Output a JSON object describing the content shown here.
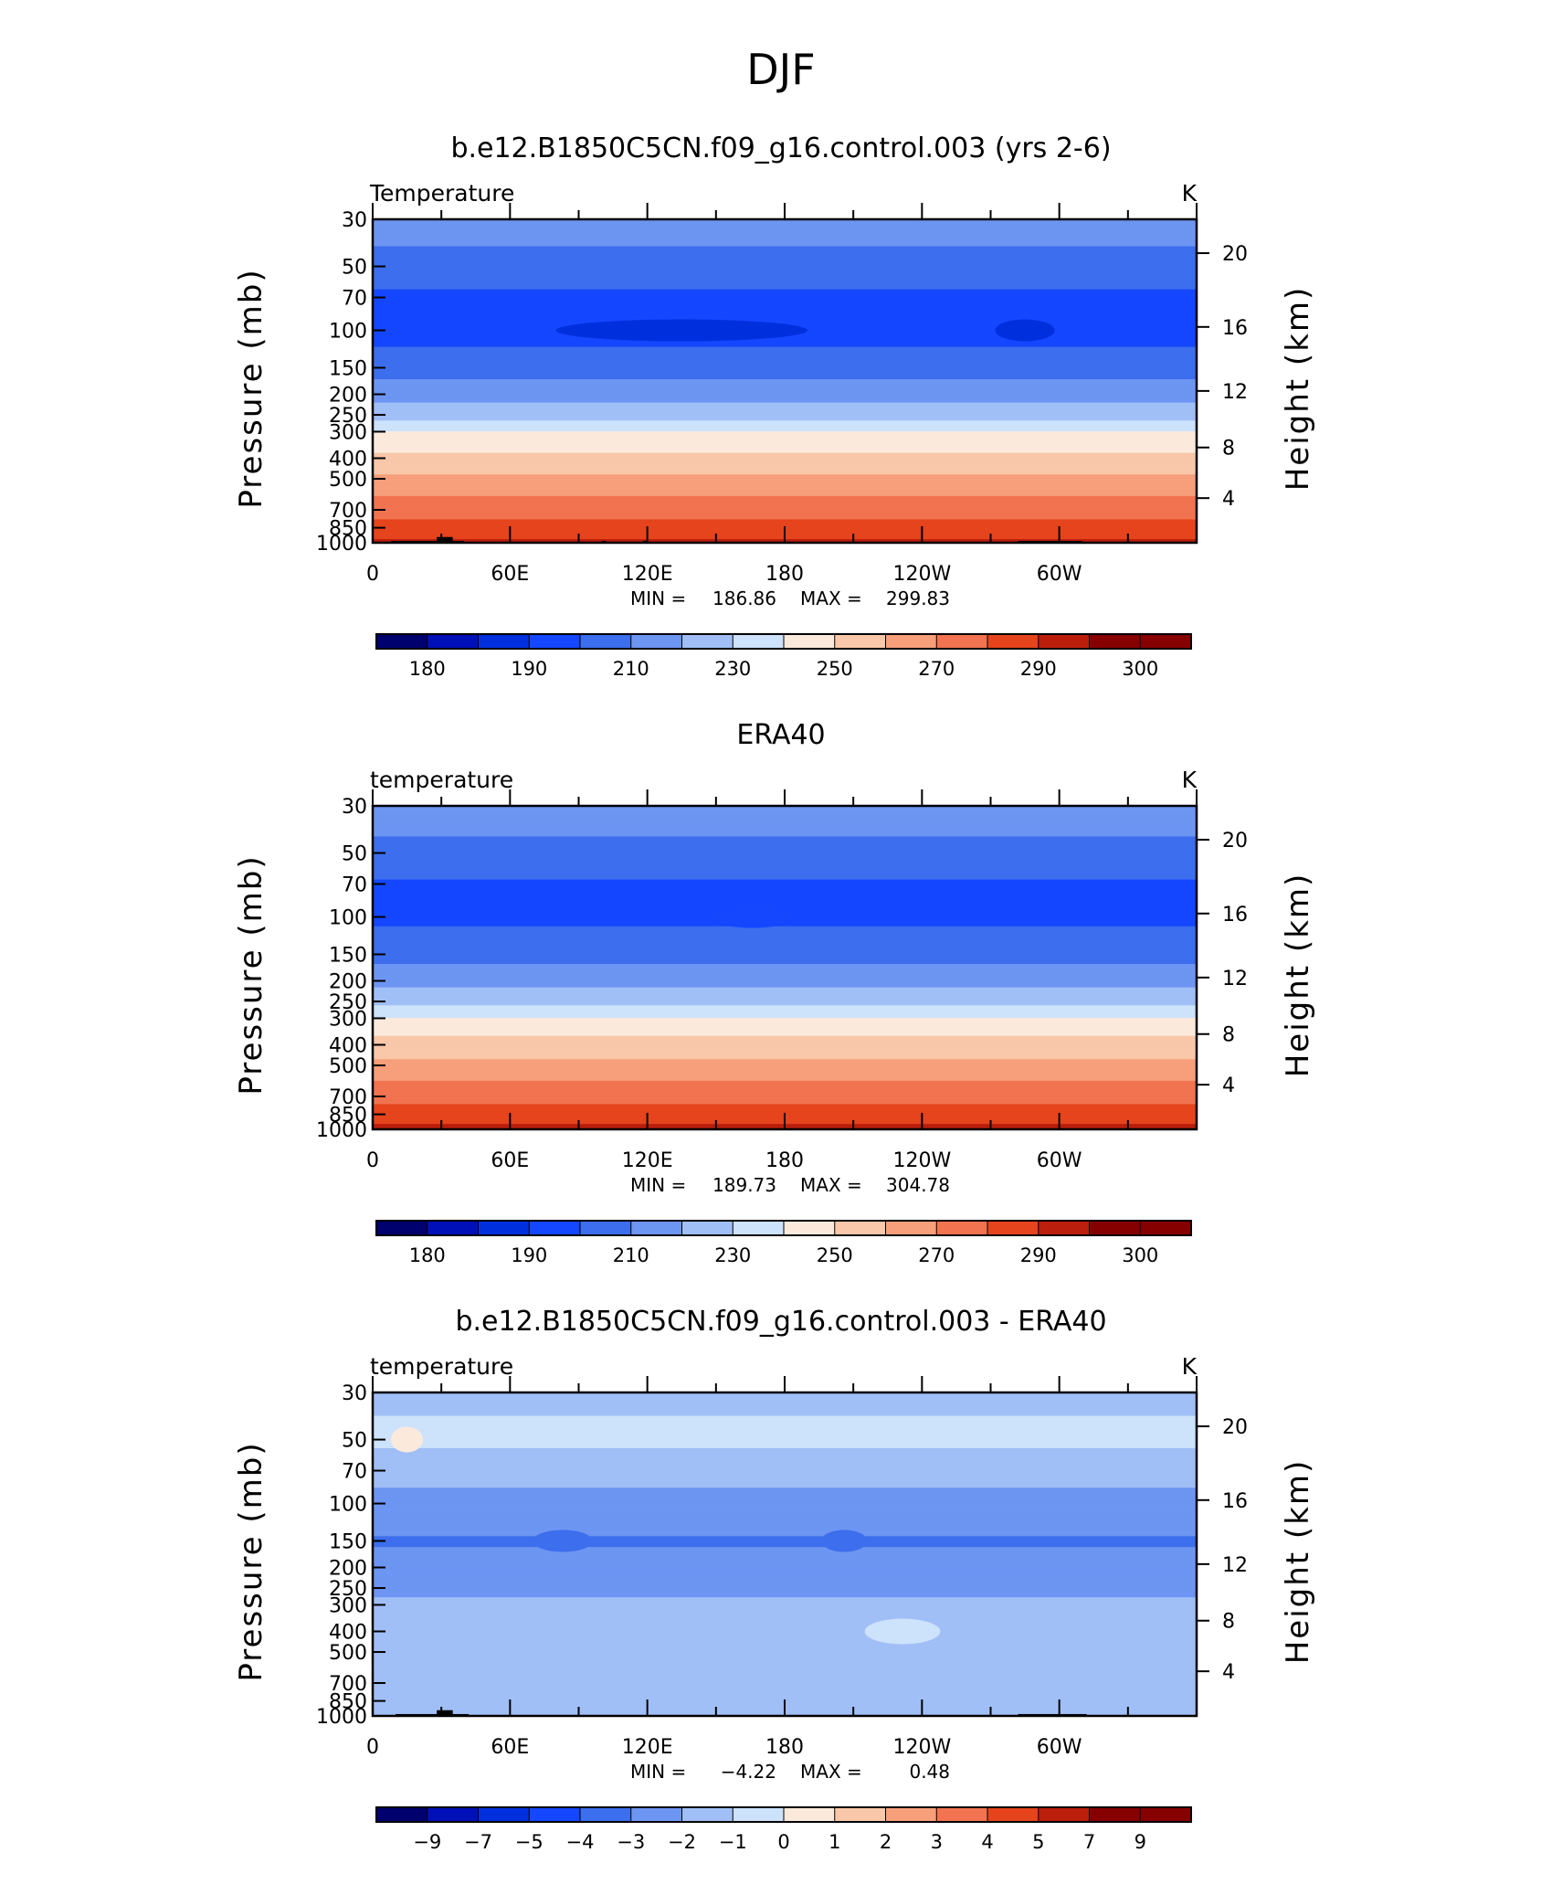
{
  "figure_title": "DJF",
  "chart_data": [
    {
      "type": "contour",
      "title": "b.e12.B1850C5CN.f09_g16.control.003 (yrs 2-6)",
      "left_label": "Temperature",
      "right_label": "K",
      "xlabel": "",
      "ylabel": "Pressure (mb)",
      "ylabel_right": "Height (km)",
      "x_ticks": [
        "0",
        "60E",
        "120E",
        "180",
        "120W",
        "60W"
      ],
      "x_tick_lon": [
        0,
        60,
        120,
        180,
        240,
        300
      ],
      "xlim": [
        0,
        360
      ],
      "y_ticks": [
        "30",
        "50",
        "70",
        "100",
        "150",
        "200",
        "250",
        "300",
        "400",
        "500",
        "700",
        "850",
        "1000"
      ],
      "y_tick_values": [
        30,
        50,
        70,
        100,
        150,
        200,
        250,
        300,
        400,
        500,
        700,
        850,
        1000
      ],
      "ylim": [
        1000,
        30
      ],
      "yscale": "log",
      "y2_ticks": [
        "4",
        "8",
        "12",
        "16",
        "20"
      ],
      "y2_tick_values": [
        4,
        8,
        12,
        16,
        20
      ],
      "stats": {
        "min_label": "MIN =",
        "min": "186.86",
        "max_label": "MAX =",
        "max": "299.83"
      },
      "contour_levels": [
        180,
        185,
        190,
        200,
        210,
        220,
        230,
        240,
        250,
        260,
        270,
        280,
        290,
        295,
        300
      ],
      "colorbar_labels": [
        "180",
        "190",
        "210",
        "230",
        "250",
        "270",
        "290",
        "300"
      ],
      "profile": [
        {
          "p": 1000,
          "t": 292
        },
        {
          "p": 850,
          "t": 283
        },
        {
          "p": 700,
          "t": 276
        },
        {
          "p": 500,
          "t": 262
        },
        {
          "p": 400,
          "t": 253
        },
        {
          "p": 300,
          "t": 240
        },
        {
          "p": 250,
          "t": 226
        },
        {
          "p": 200,
          "t": 216
        },
        {
          "p": 150,
          "t": 205
        },
        {
          "p": 100,
          "t": 196
        },
        {
          "p": 70,
          "t": 198
        },
        {
          "p": 50,
          "t": 206
        },
        {
          "p": 30,
          "t": 215
        }
      ],
      "cold_cores": [
        {
          "lon_start": 80,
          "lon_end": 190,
          "p": 100,
          "level": 185
        },
        {
          "lon_start": 272,
          "lon_end": 298,
          "p": 100,
          "level": 185
        }
      ],
      "topography": [
        {
          "lon_start": 8,
          "lon_end": 40,
          "p_top": 980
        },
        {
          "lon_start": 28,
          "lon_end": 35,
          "p_top": 940
        },
        {
          "lon_start": 100,
          "lon_end": 102,
          "p_top": 980
        },
        {
          "lon_start": 118,
          "lon_end": 120,
          "p_top": 980
        },
        {
          "lon_start": 282,
          "lon_end": 310,
          "p_top": 980
        }
      ]
    },
    {
      "type": "contour",
      "title": "ERA40",
      "left_label": "temperature",
      "right_label": "K",
      "xlabel": "",
      "ylabel": "Pressure (mb)",
      "ylabel_right": "Height (km)",
      "x_ticks": [
        "0",
        "60E",
        "120E",
        "180",
        "120W",
        "60W"
      ],
      "x_tick_lon": [
        0,
        60,
        120,
        180,
        240,
        300
      ],
      "xlim": [
        0,
        360
      ],
      "y_ticks": [
        "30",
        "50",
        "70",
        "100",
        "150",
        "200",
        "250",
        "300",
        "400",
        "500",
        "700",
        "850",
        "1000"
      ],
      "y_tick_values": [
        30,
        50,
        70,
        100,
        150,
        200,
        250,
        300,
        400,
        500,
        700,
        850,
        1000
      ],
      "ylim": [
        1000,
        30
      ],
      "yscale": "log",
      "y2_ticks": [
        "4",
        "8",
        "12",
        "16",
        "20"
      ],
      "y2_tick_values": [
        4,
        8,
        12,
        16,
        20
      ],
      "stats": {
        "min_label": "MIN =",
        "min": "189.73",
        "max_label": "MAX =",
        "max": "304.78"
      },
      "contour_levels": [
        180,
        185,
        190,
        200,
        210,
        220,
        230,
        240,
        250,
        260,
        270,
        280,
        290,
        295,
        300
      ],
      "colorbar_labels": [
        "180",
        "190",
        "210",
        "230",
        "250",
        "270",
        "290",
        "300"
      ],
      "profile": [
        {
          "p": 1000,
          "t": 294
        },
        {
          "p": 850,
          "t": 284
        },
        {
          "p": 700,
          "t": 277
        },
        {
          "p": 500,
          "t": 263
        },
        {
          "p": 400,
          "t": 254
        },
        {
          "p": 300,
          "t": 241
        },
        {
          "p": 250,
          "t": 227
        },
        {
          "p": 200,
          "t": 217
        },
        {
          "p": 150,
          "t": 206
        },
        {
          "p": 100,
          "t": 198
        },
        {
          "p": 70,
          "t": 199
        },
        {
          "p": 50,
          "t": 207
        },
        {
          "p": 30,
          "t": 216
        }
      ],
      "cold_cores": [
        {
          "lon_start": 148,
          "lon_end": 184,
          "p": 100,
          "level": 190
        }
      ],
      "topography": []
    },
    {
      "type": "contour",
      "title": "b.e12.B1850C5CN.f09_g16.control.003 - ERA40",
      "left_label": "temperature",
      "right_label": "K",
      "xlabel": "",
      "ylabel": "Pressure (mb)",
      "ylabel_right": "Height (km)",
      "x_ticks": [
        "0",
        "60E",
        "120E",
        "180",
        "120W",
        "60W"
      ],
      "x_tick_lon": [
        0,
        60,
        120,
        180,
        240,
        300
      ],
      "xlim": [
        0,
        360
      ],
      "y_ticks": [
        "30",
        "50",
        "70",
        "100",
        "150",
        "200",
        "250",
        "300",
        "400",
        "500",
        "700",
        "850",
        "1000"
      ],
      "y_tick_values": [
        30,
        50,
        70,
        100,
        150,
        200,
        250,
        300,
        400,
        500,
        700,
        850,
        1000
      ],
      "ylim": [
        1000,
        30
      ],
      "yscale": "log",
      "y2_ticks": [
        "4",
        "8",
        "12",
        "16",
        "20"
      ],
      "y2_tick_values": [
        4,
        8,
        12,
        16,
        20
      ],
      "stats": {
        "min_label": "MIN =",
        "min": "−4.22",
        "max_label": "MAX =",
        "max": "0.48"
      },
      "contour_levels": [
        -9,
        -7,
        -5,
        -4,
        -3,
        -2,
        -1,
        0,
        1,
        2,
        3,
        4,
        5,
        7,
        9
      ],
      "colorbar_labels": [
        "−9",
        "−7",
        "−5",
        "−4",
        "−3",
        "−2",
        "−1",
        "0",
        "1",
        "2",
        "3",
        "4",
        "5",
        "7",
        "9"
      ],
      "profile": [
        {
          "p": 1000,
          "t": -1.5
        },
        {
          "p": 850,
          "t": -1.2
        },
        {
          "p": 700,
          "t": -1.6
        },
        {
          "p": 500,
          "t": -1.5
        },
        {
          "p": 400,
          "t": -1.4
        },
        {
          "p": 300,
          "t": -1.8
        },
        {
          "p": 250,
          "t": -2.2
        },
        {
          "p": 200,
          "t": -2.6
        },
        {
          "p": 150,
          "t": -3.1
        },
        {
          "p": 100,
          "t": -2.4
        },
        {
          "p": 70,
          "t": -1.6
        },
        {
          "p": 50,
          "t": -0.8
        },
        {
          "p": 30,
          "t": -1.2
        }
      ],
      "cold_cores": [
        {
          "lon_start": 70,
          "lon_end": 96,
          "p": 150,
          "level": -4
        },
        {
          "lon_start": 196,
          "lon_end": 216,
          "p": 150,
          "level": -4
        }
      ],
      "warm_patches": [
        {
          "lon_start": 215,
          "lon_end": 248,
          "p": 400,
          "level": -1
        },
        {
          "lon_start": 8,
          "lon_end": 22,
          "p": 50,
          "level": 0
        }
      ],
      "topography": [
        {
          "lon_start": 10,
          "lon_end": 42,
          "p_top": 980
        },
        {
          "lon_start": 28,
          "lon_end": 35,
          "p_top": 940
        },
        {
          "lon_start": 282,
          "lon_end": 312,
          "p_top": 980
        }
      ]
    }
  ],
  "colors": {
    "colormap": [
      "#00006e",
      "#0010b8",
      "#0030de",
      "#1447ff",
      "#3c6eed",
      "#6d95f2",
      "#a0bff6",
      "#cde2fb",
      "#fbeadc",
      "#f9c7a9",
      "#f69f7a",
      "#f17350",
      "#e5441d",
      "#bb1e0c",
      "#860000"
    ]
  }
}
